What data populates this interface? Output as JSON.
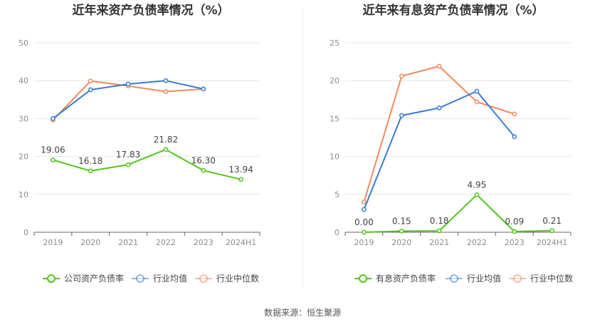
{
  "source": "数据来源：恒生聚源",
  "chart_data": [
    {
      "type": "line",
      "title": "近年来资产负债率情况（%）",
      "categories": [
        "2019",
        "2020",
        "2021",
        "2022",
        "2023",
        "2024H1"
      ],
      "ylim": [
        0,
        50
      ],
      "yticks": [
        0,
        10,
        20,
        30,
        40,
        50
      ],
      "grid": true,
      "legend_position": "bottom",
      "series": [
        {
          "name": "公司资产负债率",
          "color": "#52c41a",
          "values": [
            19.06,
            16.18,
            17.83,
            21.82,
            16.3,
            13.94
          ],
          "labels": [
            "19.06",
            "16.18",
            "17.83",
            "21.82",
            "16.30",
            "13.94"
          ]
        },
        {
          "name": "行业均值",
          "color": "#3a7bd5",
          "values": [
            30.0,
            37.6,
            39.1,
            40.0,
            37.8,
            null
          ]
        },
        {
          "name": "行业中位数",
          "color": "#f08a5d",
          "values": [
            29.6,
            39.9,
            38.6,
            37.1,
            37.8,
            null
          ]
        }
      ]
    },
    {
      "type": "line",
      "title": "近年来有息资产负债率情况（%）",
      "categories": [
        "2019",
        "2020",
        "2021",
        "2022",
        "2023",
        "2024H1"
      ],
      "ylim": [
        0,
        25
      ],
      "yticks": [
        0,
        5,
        10,
        15,
        20,
        25
      ],
      "grid": true,
      "legend_position": "bottom",
      "series": [
        {
          "name": "有息资产负债率",
          "color": "#52c41a",
          "values": [
            0.0,
            0.15,
            0.18,
            4.95,
            0.09,
            0.21
          ],
          "labels": [
            "0.00",
            "0.15",
            "0.18",
            "4.95",
            "0.09",
            "0.21"
          ]
        },
        {
          "name": "行业均值",
          "color": "#3a7bd5",
          "values": [
            3.0,
            15.4,
            16.4,
            18.6,
            12.6,
            null
          ]
        },
        {
          "name": "行业中位数",
          "color": "#f08a5d",
          "values": [
            4.0,
            20.6,
            21.9,
            17.2,
            15.6,
            null
          ]
        }
      ]
    }
  ]
}
